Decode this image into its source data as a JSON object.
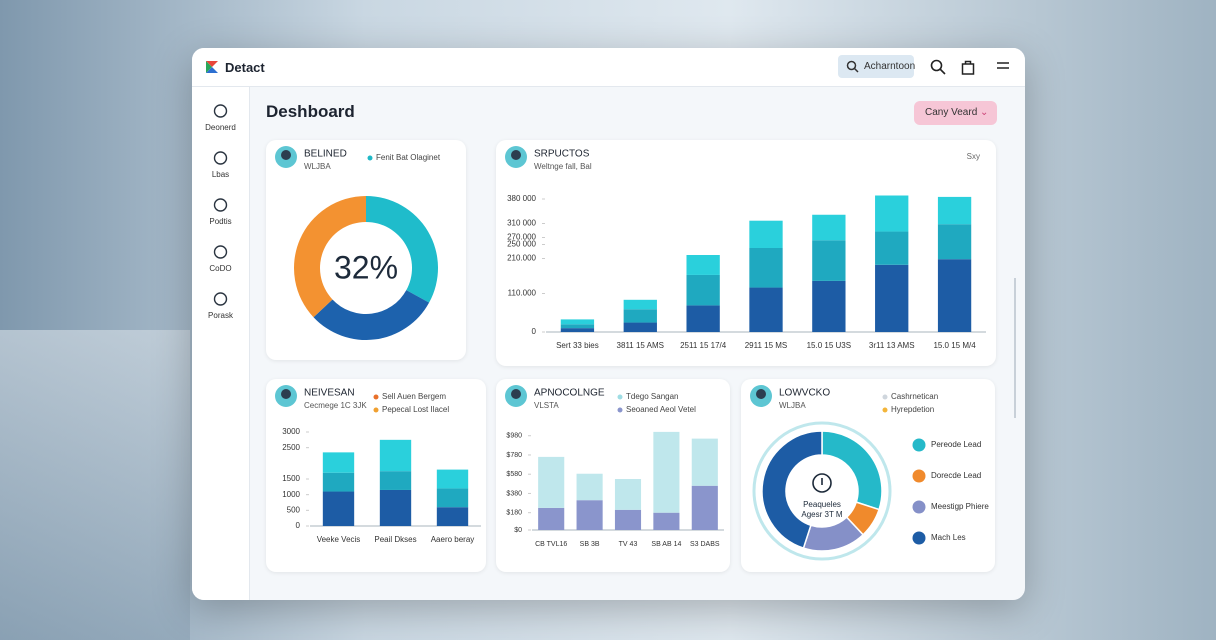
{
  "header": {
    "brand": "Detact",
    "search": "Acharntoon"
  },
  "sidebar": [
    "Deonerd",
    "Lbas",
    "Podtis",
    "CoDO",
    "Porask"
  ],
  "page": {
    "title": "Deshboard",
    "button": "Cany Veard"
  },
  "panels": [
    {
      "title": "BELINED",
      "subtitle": "WLJBA",
      "legend": [
        {
          "label": "Fenit Bat Olaginet",
          "color": "#1fb8c6"
        }
      ],
      "chart": {
        "type": "donut",
        "center_label": "32%",
        "values": [
          33,
          30,
          37
        ],
        "colors": [
          "#1fbccb",
          "#1d62ad",
          "#f39231"
        ]
      }
    },
    {
      "title": "SRPUCTOS",
      "subtitle": "Weltnge fall, Bal",
      "note": "Sxy",
      "chart": {
        "type": "stacked-bar",
        "categories": [
          "Sert 33 bies",
          "3811 15 AMS",
          "2511 15 17/4",
          "2911 15 MS",
          "15.0 15 U3S",
          "3r11 13 AMS",
          "15.0 15 M/4"
        ],
        "series": [
          {
            "color": "#1d5ca5",
            "values": [
              11000,
              27000,
              76000,
              127000,
              146000,
              192000,
              208000
            ]
          },
          {
            "color": "#1fa9c0",
            "values": [
              11000,
              38000,
              87000,
              113000,
              116000,
              95000,
              100000
            ]
          },
          {
            "color": "#2ad0dc",
            "values": [
              14000,
              27000,
              57000,
              78000,
              73000,
              103000,
              78000
            ]
          }
        ],
        "ylim": [
          0,
          400000
        ],
        "yticks": [
          0,
          {
            "value": 110000,
            "label": "110.000"
          },
          {
            "value": 210000,
            "label": "210.000"
          },
          {
            "value": 250000,
            "label": "250 000"
          },
          {
            "value": 270000,
            "label": "270.000"
          },
          {
            "value": 310000,
            "label": "310 000"
          },
          {
            "value": 380000,
            "label": "380 000"
          }
        ]
      }
    },
    {
      "title": "NEIVESAN",
      "subtitle": "Cecmege 1C 3JK",
      "legend": [
        {
          "label": "Sell Auen Bergem",
          "color": "#e8702a"
        },
        {
          "label": "Pepecal Lost Ilacel",
          "color": "#f0a030"
        }
      ],
      "chart": {
        "type": "stacked-bar",
        "categories": [
          "Veeke Vecis",
          "Peail Dkses",
          "Aaero beray"
        ],
        "series": [
          {
            "color": "#1d5ca5",
            "values": [
              1100,
              1150,
              600
            ]
          },
          {
            "color": "#1fa9c0",
            "values": [
              600,
              600,
              600
            ]
          },
          {
            "color": "#2ad0dc",
            "values": [
              650,
              1000,
              600
            ]
          }
        ],
        "ylim": [
          0,
          3000
        ],
        "yticks": [
          0,
          500,
          1000,
          1500,
          2500,
          3000
        ]
      }
    },
    {
      "title": "APNOCOLNGE",
      "subtitle": "VLSTA",
      "legend": [
        {
          "label": "Tdego Sangan",
          "color": "#9fdde4"
        },
        {
          "label": "Seoaned Aeol Vetel",
          "color": "#8a95cc"
        }
      ],
      "chart": {
        "type": "stacked-bar",
        "categories": [
          "CB TVL16",
          "SB 3B",
          "TV 43",
          "SB AB 14",
          "S3 DABS"
        ],
        "series": [
          {
            "color": "#8a95cc",
            "values": [
              230,
              310,
              210,
              180,
              460
            ]
          },
          {
            "color": "#bfe7ec",
            "values": [
              530,
              275,
              320,
              840,
              490
            ]
          }
        ],
        "ylim": [
          0,
          1050
        ],
        "yticks": [
          {
            "value": 0,
            "label": "$0"
          },
          {
            "value": 180,
            "label": "$180"
          },
          {
            "value": 380,
            "label": "$380"
          },
          {
            "value": 580,
            "label": "$580"
          },
          {
            "value": 780,
            "label": "$780"
          },
          {
            "value": 980,
            "label": "$980"
          }
        ]
      }
    },
    {
      "title": "LOWVCKO",
      "subtitle": "WLJBA",
      "legend": [
        {
          "label": "Cashrnetican",
          "color": "#cfd6dd"
        },
        {
          "label": "Hyrepdetion",
          "color": "#f3b53a"
        }
      ],
      "chart": {
        "type": "donut",
        "center_label": "Peaqueles",
        "center_sublabel": "Agesr 3T M",
        "categories": [
          "Pereode Lead",
          "Dorecde Lead",
          "Meestigp Phiere",
          "Mach Les"
        ],
        "values": [
          30,
          8,
          17,
          45
        ],
        "colors": [
          "#25b9c9",
          "#f08a2c",
          "#8590c8",
          "#1d5ca5"
        ]
      }
    }
  ]
}
